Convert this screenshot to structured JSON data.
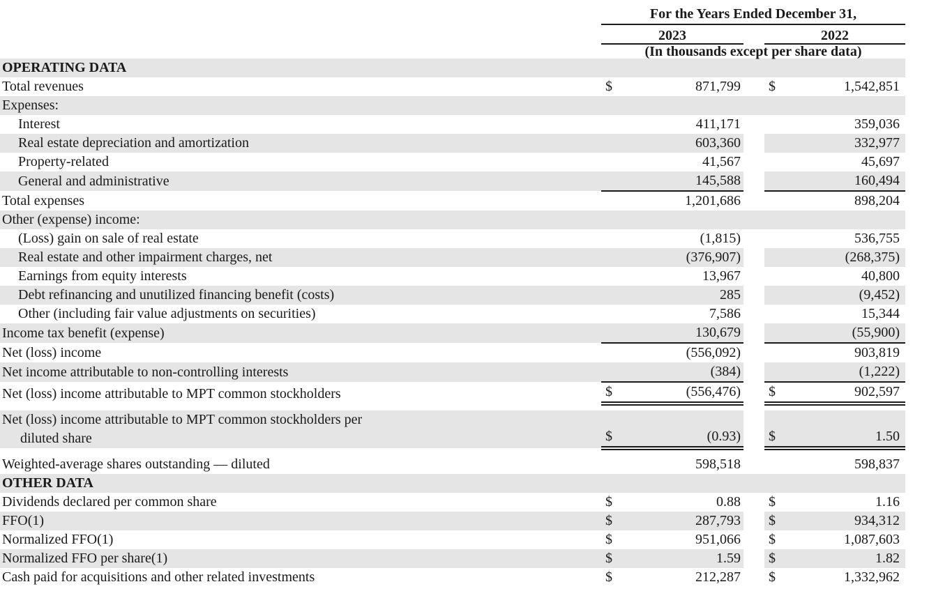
{
  "header": {
    "period_label": "For the Years Ended December 31,",
    "year_columns": [
      "2023",
      "2022"
    ],
    "units_note": "(In thousands except per share data)"
  },
  "colors": {
    "row_shade": "#e5e5e5",
    "text": "#1a1a1a",
    "rule": "#1a1a1a"
  },
  "table": {
    "rows": [
      {
        "label": "OPERATING DATA",
        "full": true,
        "bold": true,
        "shaded": true
      },
      {
        "label": "Total revenues",
        "d1": "$",
        "v1": "871,799",
        "d2": "$",
        "v2": "1,542,851",
        "shaded": false
      },
      {
        "label": "Expenses:",
        "full": true,
        "shaded": true
      },
      {
        "label": "Interest",
        "indent": true,
        "v1": "411,171",
        "v2": "359,036",
        "shaded": false
      },
      {
        "label": "Real estate depreciation and amortization",
        "indent": true,
        "v1": "603,360",
        "v2": "332,977",
        "shaded": true
      },
      {
        "label": "Property-related",
        "indent": true,
        "v1": "41,567",
        "v2": "45,697",
        "shaded": false
      },
      {
        "label": "General and administrative",
        "indent": true,
        "v1": "145,588",
        "v2": "160,494",
        "shaded": true,
        "rule": "single"
      },
      {
        "label": "Total expenses",
        "v1": "1,201,686",
        "v2": "898,204",
        "shaded": false
      },
      {
        "label": "Other (expense) income:",
        "full": true,
        "shaded": true
      },
      {
        "label": "(Loss) gain on sale of real estate",
        "indent": true,
        "v1": "(1,815)",
        "v2": "536,755",
        "shaded": false
      },
      {
        "label": "Real estate and other impairment charges, net",
        "indent": true,
        "v1": "(376,907)",
        "v2": "(268,375)",
        "shaded": true
      },
      {
        "label": "Earnings from equity interests",
        "indent": true,
        "v1": "13,967",
        "v2": "40,800",
        "shaded": false
      },
      {
        "label": "Debt refinancing and unutilized financing benefit (costs)",
        "indent": true,
        "v1": "285",
        "v2": "(9,452)",
        "shaded": true
      },
      {
        "label": "Other (including fair value adjustments on securities)",
        "indent": true,
        "v1": "7,586",
        "v2": "15,344",
        "shaded": false
      },
      {
        "label": "Income tax benefit (expense)",
        "v1": "130,679",
        "v2": "(55,900)",
        "shaded": true,
        "rule": "single"
      },
      {
        "label": "Net (loss) income",
        "v1": "(556,092)",
        "v2": "903,819",
        "shaded": false
      },
      {
        "label": "Net income attributable to non-controlling interests",
        "v1": "(384)",
        "v2": "(1,222)",
        "shaded": true,
        "rule": "single"
      },
      {
        "label": "Net (loss) income attributable to MPT common stockholders",
        "d1": "$",
        "v1": "(556,476)",
        "d2": "$",
        "v2": "902,597",
        "shaded": false,
        "rule": "double"
      },
      {
        "label": "Net (loss) income attributable to MPT common stockholders per",
        "label2": "diluted share",
        "d1": "$",
        "v1": "(0.93)",
        "d2": "$",
        "v2": "1.50",
        "shaded": true,
        "rule": "double"
      },
      {
        "label": "Weighted-average shares outstanding — diluted",
        "v1": "598,518",
        "v2": "598,837",
        "shaded": false
      },
      {
        "label": "OTHER DATA",
        "full": true,
        "bold": true,
        "shaded": true
      },
      {
        "label": "Dividends declared per common share",
        "d1": "$",
        "v1": "0.88",
        "d2": "$",
        "v2": "1.16",
        "shaded": false
      },
      {
        "label": "FFO(1)",
        "d1": "$",
        "v1": "287,793",
        "d2": "$",
        "v2": "934,312",
        "shaded": true
      },
      {
        "label": "Normalized FFO(1)",
        "d1": "$",
        "v1": "951,066",
        "d2": "$",
        "v2": "1,087,603",
        "shaded": false
      },
      {
        "label": "Normalized FFO per share(1)",
        "d1": "$",
        "v1": "1.59",
        "d2": "$",
        "v2": "1.82",
        "shaded": true
      },
      {
        "label": "Cash paid for acquisitions and other related investments",
        "d1": "$",
        "v1": "212,287",
        "d2": "$",
        "v2": "1,332,962",
        "shaded": false
      }
    ]
  }
}
